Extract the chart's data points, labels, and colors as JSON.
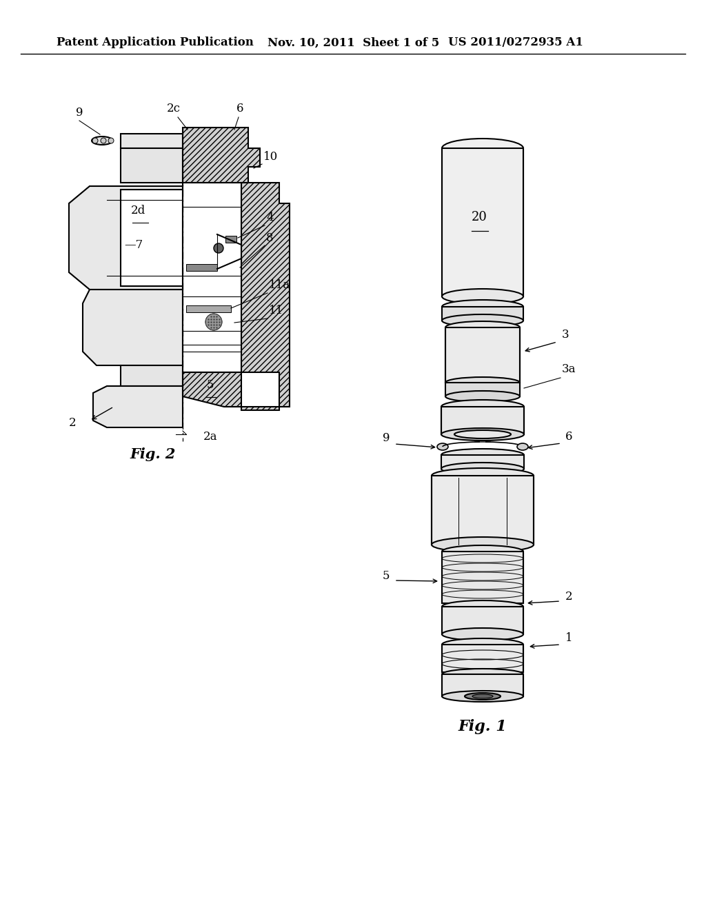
{
  "title_left": "Patent Application Publication",
  "title_mid": "Nov. 10, 2011  Sheet 1 of 5",
  "title_right": "US 2011/0272935 A1",
  "fig1_label": "Fig. 1",
  "fig2_label": "Fig. 2",
  "bg_color": "#ffffff",
  "line_color": "#000000",
  "fill_light": "#f0f0f0",
  "fill_mid": "#e0e0e0",
  "fill_dark": "#c8c8c8",
  "fill_hatch": "#d8d8d8",
  "label_fontsize": 12,
  "title_fontsize": 12
}
